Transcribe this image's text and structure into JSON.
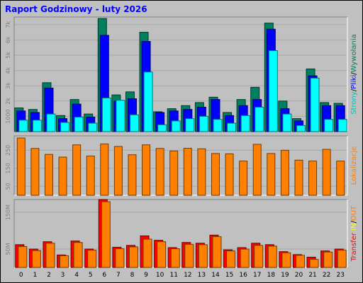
{
  "chart_data": {
    "title": "Raport Godzinowy -  luty 2026",
    "type": "bar",
    "categories": [
      "0",
      "1",
      "2",
      "3",
      "4",
      "5",
      "6",
      "7",
      "8",
      "9",
      "10",
      "11",
      "12",
      "13",
      "14",
      "15",
      "16",
      "17",
      "18",
      "19",
      "20",
      "21",
      "22",
      "23"
    ],
    "panels": [
      {
        "id": "pages",
        "ylabel_parts": [
          {
            "text": "Strony",
            "color": "#00c0c0"
          },
          {
            "text": "/",
            "color": "#000000"
          },
          {
            "text": "Pliki",
            "color": "#0000ff"
          },
          {
            "text": "/",
            "color": "#000000"
          },
          {
            "text": "Wywołania",
            "color": "#008060"
          }
        ],
        "tick_labels": [
          "1000",
          "2k",
          "3k",
          "4k",
          "5k",
          "6k",
          "7k"
        ],
        "tick_values": [
          1000,
          2000,
          3000,
          4000,
          5000,
          6000,
          7000
        ],
        "ylim": [
          0,
          7500
        ],
        "series": [
          {
            "name": "Wywołania",
            "color": "#008060",
            "values": [
              1550,
              1450,
              3200,
              1050,
              2100,
              1150,
              7400,
              2400,
              2600,
              6500,
              1300,
              1500,
              1700,
              1900,
              2250,
              1250,
              2100,
              2900,
              7100,
              2000,
              850,
              4100,
              1900,
              1850
            ]
          },
          {
            "name": "Pliki",
            "color": "#0000ff",
            "values": [
              1350,
              1250,
              2850,
              850,
              1800,
              950,
              6300,
              2000,
              2150,
              5900,
              1250,
              1350,
              1450,
              1600,
              2100,
              1050,
              1700,
              2100,
              6700,
              1500,
              700,
              3650,
              1700,
              1700
            ]
          },
          {
            "name": "Strony",
            "color": "#00ffff",
            "values": [
              750,
              750,
              1150,
              600,
              950,
              550,
              2200,
              2050,
              1100,
              3900,
              450,
              700,
              850,
              1000,
              800,
              550,
              1050,
              1600,
              5300,
              1150,
              400,
              3500,
              800,
              800
            ]
          }
        ]
      },
      {
        "id": "locations",
        "ylabel_parts": [
          {
            "text": "Lokalizacje",
            "color": "#ff8000"
          }
        ],
        "tick_labels": [
          "50",
          "150",
          "250"
        ],
        "tick_values": [
          50,
          150,
          250
        ],
        "ylim": [
          0,
          330
        ],
        "series": [
          {
            "name": "Lokalizacje",
            "color": "#ff8000",
            "values": [
              318,
              260,
              227,
              212,
              280,
              218,
              285,
              271,
              225,
              280,
              260,
              246,
              261,
              258,
              232,
              230,
              190,
              283,
              232,
              250,
              195,
              190,
              255,
              190
            ]
          }
        ]
      },
      {
        "id": "transfer",
        "ylabel_parts": [
          {
            "text": "Transfer ",
            "color": "#ff0000"
          },
          {
            "text": "IN",
            "color": "#ffff00"
          },
          {
            "text": "/",
            "color": "#000000"
          },
          {
            "text": "OUT",
            "color": "#ff8000"
          }
        ],
        "tick_labels": [
          "50M",
          "150M"
        ],
        "tick_values": [
          50,
          150
        ],
        "ylim": [
          0,
          185
        ],
        "series": [
          {
            "name": "IN",
            "color": "#ff0000",
            "values": [
              62,
              50,
              70,
              34,
              72,
              50,
              185,
              55,
              60,
              86,
              74,
              54,
              68,
              66,
              88,
              48,
              54,
              66,
              62,
              43,
              35,
              28,
              45,
              50
            ]
          },
          {
            "name": "OUT",
            "color": "#ff8000",
            "values": [
              57,
              46,
              66,
              32,
              68,
              47,
              179,
              51,
              56,
              77,
              70,
              51,
              63,
              62,
              84,
              45,
              50,
              60,
              58,
              40,
              33,
              22,
              42,
              47
            ]
          }
        ]
      }
    ]
  }
}
